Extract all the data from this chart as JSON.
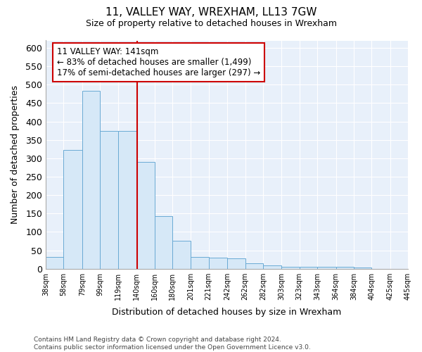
{
  "title": "11, VALLEY WAY, WREXHAM, LL13 7GW",
  "subtitle": "Size of property relative to detached houses in Wrexham",
  "xlabel": "Distribution of detached houses by size in Wrexham",
  "ylabel": "Number of detached properties",
  "bar_color": "#d6e8f7",
  "bar_edge_color": "#6aaad4",
  "bg_color": "#e8f0fa",
  "grid_color": "#ffffff",
  "vline_x": 141,
  "vline_color": "#cc0000",
  "annotation_text": "11 VALLEY WAY: 141sqm\n← 83% of detached houses are smaller (1,499)\n17% of semi-detached houses are larger (297) →",
  "annotation_box_color": "#ffffff",
  "annotation_box_edge": "#cc0000",
  "bins": [
    38,
    58,
    79,
    99,
    119,
    140,
    160,
    180,
    201,
    221,
    242,
    262,
    282,
    303,
    323,
    343,
    364,
    384,
    404,
    425,
    445
  ],
  "counts": [
    32,
    322,
    483,
    375,
    375,
    291,
    143,
    76,
    32,
    30,
    28,
    15,
    8,
    5,
    5,
    5,
    5,
    3,
    0,
    0,
    5
  ],
  "footnote": "Contains HM Land Registry data © Crown copyright and database right 2024.\nContains public sector information licensed under the Open Government Licence v3.0.",
  "ylim": [
    0,
    620
  ],
  "yticks": [
    0,
    50,
    100,
    150,
    200,
    250,
    300,
    350,
    400,
    450,
    500,
    550,
    600
  ],
  "fig_width": 6.0,
  "fig_height": 5.0,
  "fig_bg": "#ffffff"
}
